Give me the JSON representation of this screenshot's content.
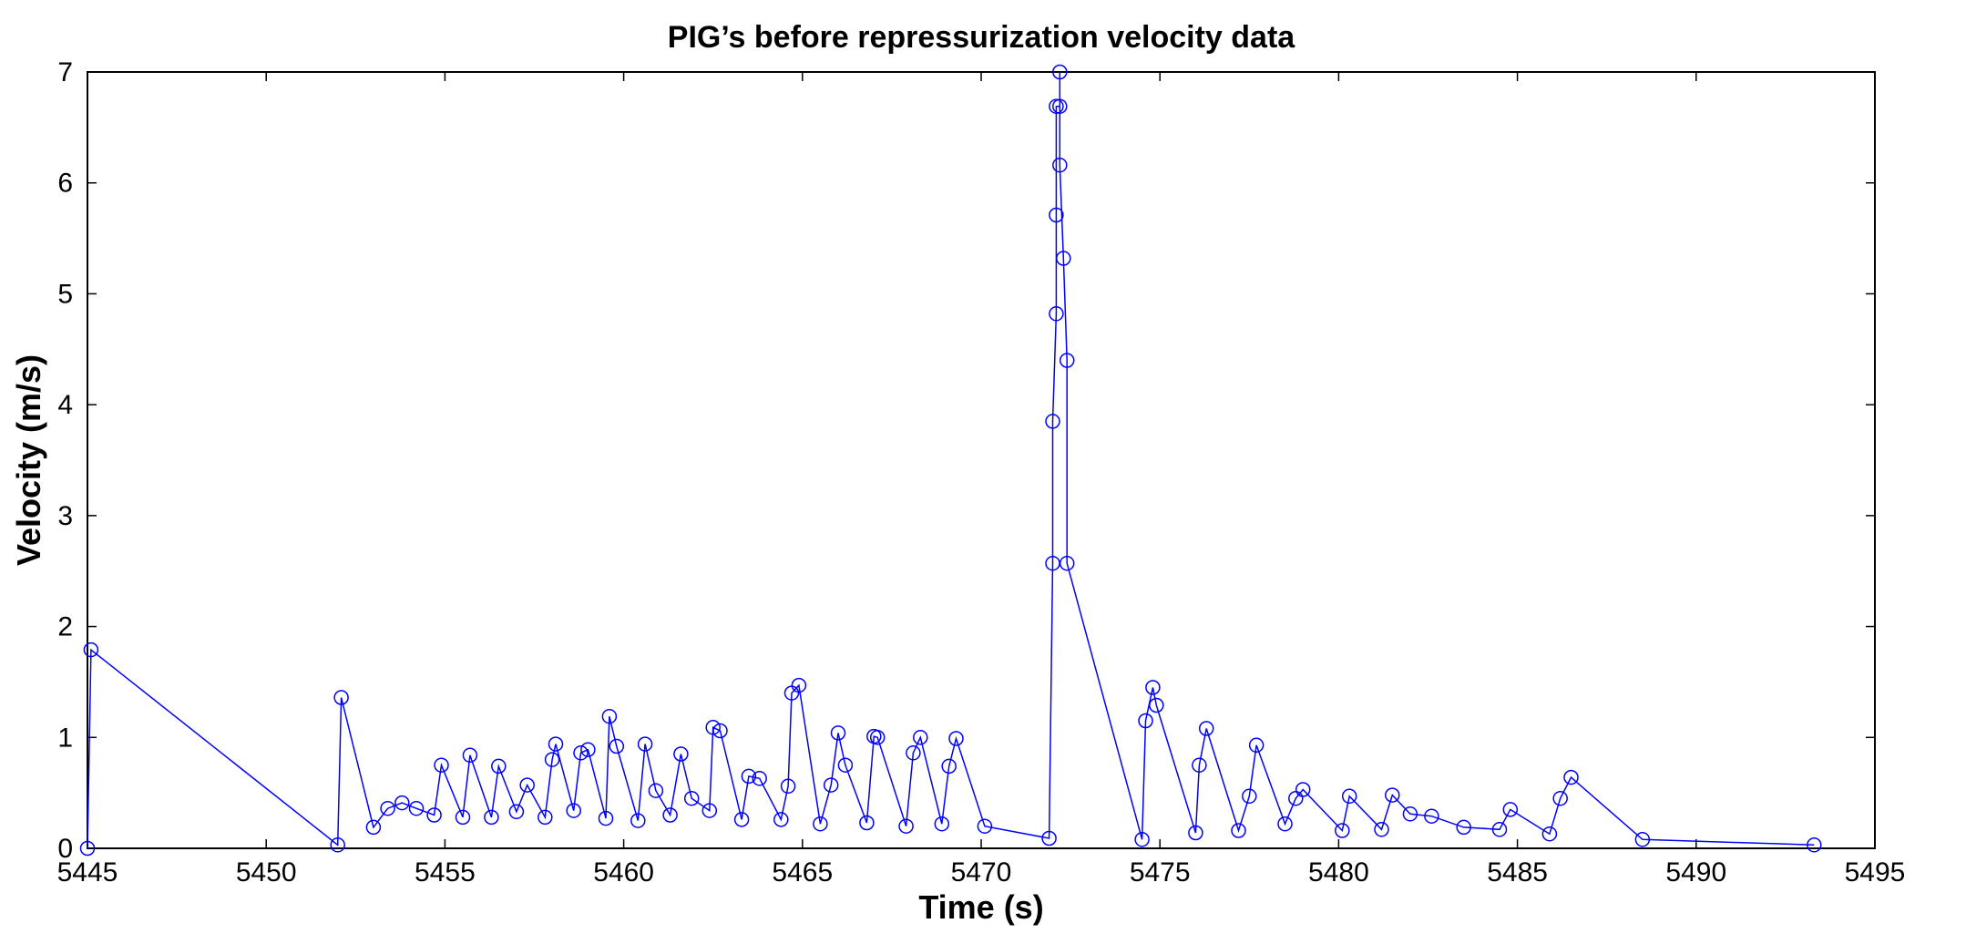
{
  "colors": {
    "series": "#0000ff",
    "axes": "#000000",
    "background": "#ffffff"
  },
  "chart_data": {
    "type": "line",
    "title": "PIG’s before repressurization velocity data",
    "xlabel": "Time (s)",
    "ylabel": "Velocity (m/s)",
    "xlim": [
      5445,
      5495
    ],
    "ylim": [
      0,
      7
    ],
    "xticks": [
      5445,
      5450,
      5455,
      5460,
      5465,
      5470,
      5475,
      5480,
      5485,
      5490,
      5495
    ],
    "yticks": [
      0,
      1,
      2,
      3,
      4,
      5,
      6,
      7
    ],
    "grid": false,
    "marker": "circle",
    "series": [
      {
        "name": "velocity",
        "x": [
          5445.0,
          5445.1,
          5452.0,
          5452.1,
          5453.0,
          5453.4,
          5453.8,
          5454.2,
          5454.7,
          5454.9,
          5455.5,
          5455.7,
          5456.3,
          5456.5,
          5457.0,
          5457.3,
          5457.8,
          5458.0,
          5458.1,
          5458.6,
          5458.8,
          5459.0,
          5459.5,
          5459.6,
          5459.8,
          5460.4,
          5460.6,
          5460.9,
          5461.3,
          5461.6,
          5461.9,
          5462.4,
          5462.5,
          5462.7,
          5463.3,
          5463.5,
          5463.8,
          5464.4,
          5464.6,
          5464.7,
          5464.9,
          5465.5,
          5465.8,
          5466.0,
          5466.2,
          5466.8,
          5467.0,
          5467.1,
          5467.9,
          5468.1,
          5468.3,
          5468.9,
          5469.1,
          5469.3,
          5470.1,
          5471.9,
          5472.0,
          5472.0,
          5472.1,
          5472.1,
          5472.1,
          5472.2,
          5472.2,
          5472.2,
          5472.3,
          5472.4,
          5472.4,
          5474.5,
          5474.6,
          5474.8,
          5474.9,
          5476.0,
          5476.1,
          5476.3,
          5477.2,
          5477.5,
          5477.7,
          5478.5,
          5478.8,
          5479.0,
          5480.1,
          5480.3,
          5481.2,
          5481.5,
          5482.0,
          5482.6,
          5483.5,
          5484.5,
          5484.8,
          5485.9,
          5486.2,
          5486.5,
          5488.5,
          5493.3
        ],
        "values": [
          0.0,
          1.79,
          0.03,
          1.36,
          0.19,
          0.36,
          0.41,
          0.36,
          0.3,
          0.75,
          0.28,
          0.84,
          0.28,
          0.74,
          0.33,
          0.57,
          0.28,
          0.8,
          0.94,
          0.34,
          0.86,
          0.89,
          0.27,
          1.19,
          0.92,
          0.25,
          0.94,
          0.52,
          0.3,
          0.85,
          0.45,
          0.34,
          1.09,
          1.06,
          0.26,
          0.65,
          0.63,
          0.26,
          0.56,
          1.4,
          1.47,
          0.22,
          0.57,
          1.04,
          0.75,
          0.23,
          1.01,
          1.0,
          0.2,
          0.86,
          1.0,
          0.22,
          0.74,
          0.99,
          0.2,
          0.09,
          2.57,
          3.85,
          4.82,
          5.71,
          6.69,
          6.69,
          7.0,
          6.16,
          5.32,
          4.4,
          2.57,
          0.08,
          1.15,
          1.45,
          1.29,
          0.14,
          0.75,
          1.08,
          0.16,
          0.47,
          0.93,
          0.22,
          0.45,
          0.53,
          0.16,
          0.47,
          0.17,
          0.48,
          0.31,
          0.29,
          0.19,
          0.17,
          0.35,
          0.13,
          0.45,
          0.64,
          0.08,
          0.03
        ]
      }
    ]
  }
}
